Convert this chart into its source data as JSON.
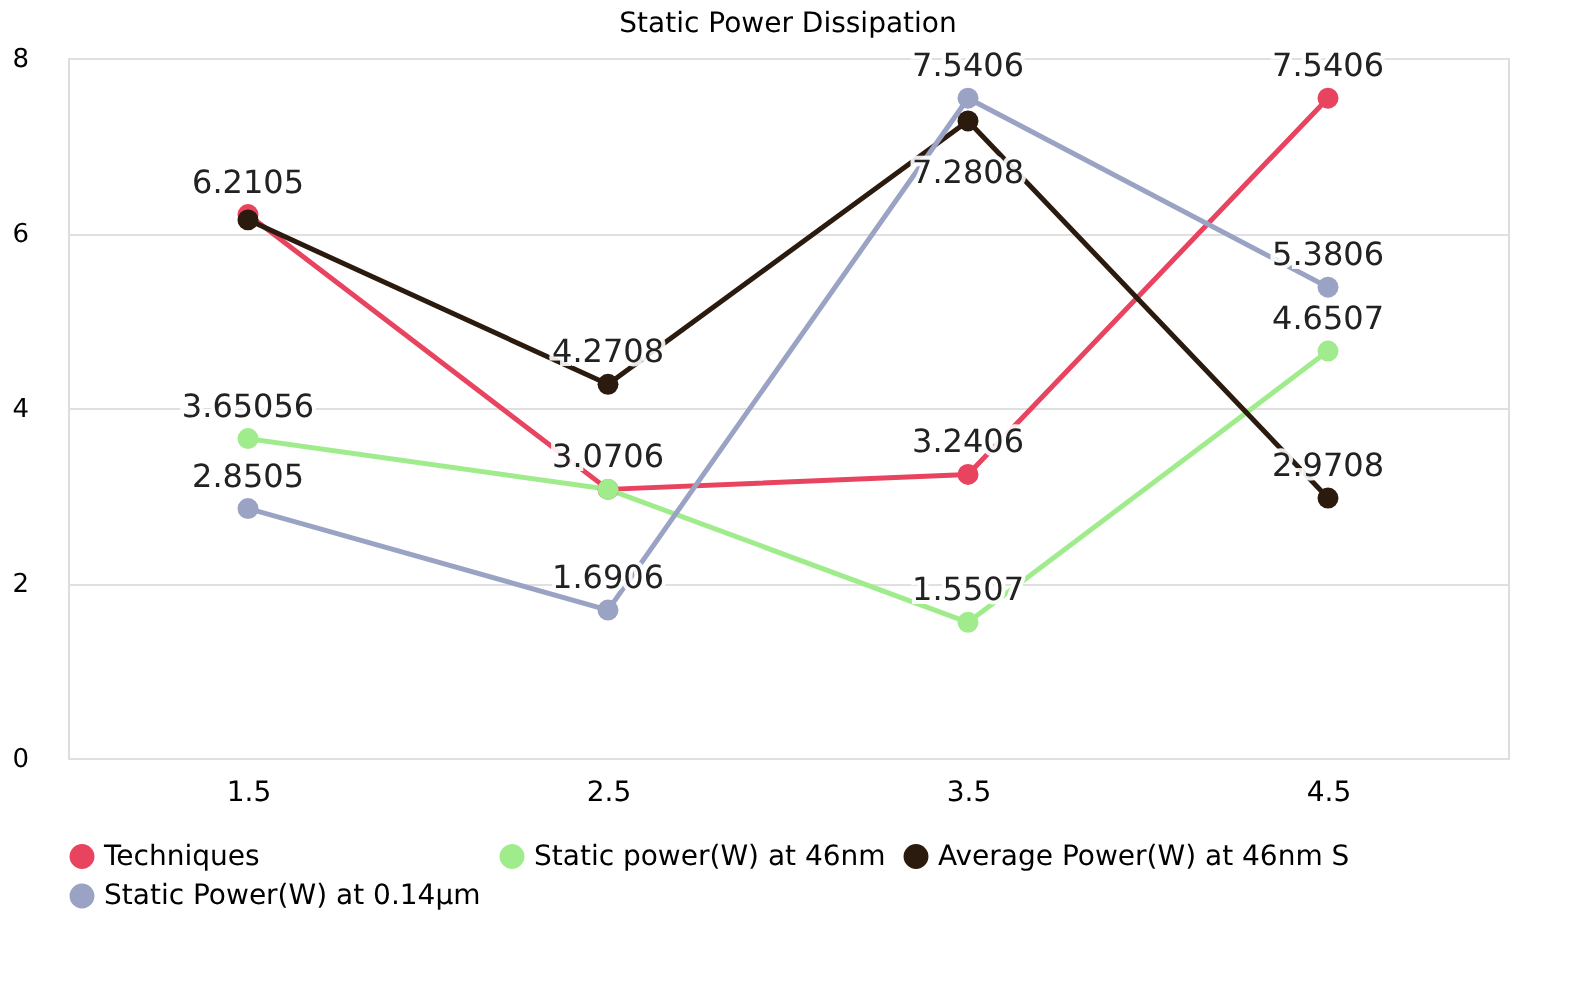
{
  "chart_data": {
    "type": "line",
    "title": "Static Power Dissipation",
    "categories": [
      "1.5",
      "2.5",
      "3.5",
      "4.5"
    ],
    "series": [
      {
        "name": "Techniques",
        "color": "#e8435f",
        "values": [
          6.2105,
          3.07,
          3.2406,
          7.5406
        ],
        "value_labels": [
          "6.2105",
          null,
          "3.2406",
          "7.5406"
        ]
      },
      {
        "name": "Static power(W) at 46nm",
        "color": "#a0ec8c",
        "values": [
          3.65056,
          3.0706,
          1.5507,
          4.6507
        ],
        "value_labels": [
          "3.65056",
          "3.0706",
          "1.5507",
          "4.6507"
        ]
      },
      {
        "name": "Average Power(W) at 46nm S",
        "color": "#2b1a0e",
        "values": [
          6.15,
          4.2708,
          7.2808,
          2.9708
        ],
        "value_labels": [
          null,
          "4.2708",
          "7.2808",
          "2.9708"
        ]
      },
      {
        "name": "Static Power(W) at 0.14μm",
        "color": "#9aa3c4",
        "values": [
          2.8505,
          1.6906,
          7.5406,
          5.3806
        ],
        "value_labels": [
          "2.8505",
          "1.6906",
          "7.5406",
          "5.3806"
        ]
      }
    ],
    "ylim": [
      0,
      8
    ],
    "yticks": [
      0,
      2,
      4,
      6,
      8
    ],
    "grid": "y",
    "legend": "bottom",
    "marker": "circle",
    "line_style": "solid"
  }
}
